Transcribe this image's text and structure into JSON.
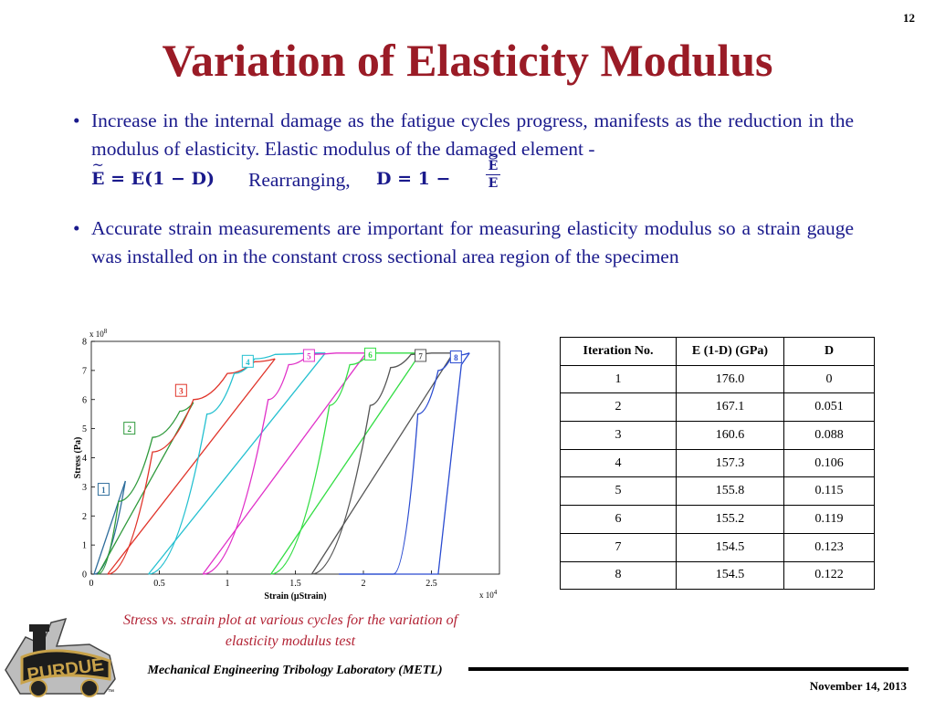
{
  "page_number": "12",
  "title": "Variation of Elasticity Modulus",
  "bullets": [
    {
      "marker": "•",
      "text": "Increase in the internal damage as the fatigue cycles progress, manifests as the reduction in the modulus of elasticity. Elastic modulus of the damaged element -",
      "formula_1_lhs": "E",
      "formula_1_rhs": " = E(1 − D)",
      "rearranging_label": "Rearranging,",
      "formula_2": "D = 1 −",
      "fraction_numerator": "E",
      "fraction_denominator": "E"
    },
    {
      "marker": "•",
      "text": "Accurate strain measurements are important for measuring elasticity modulus so a strain gauge was installed on in the constant cross sectional area region of the specimen"
    }
  ],
  "chart_data": {
    "type": "line",
    "xlabel": "Strain (μStrain)",
    "ylabel": "Stress (Pa)",
    "x_multiplier": "x 10^4",
    "y_multiplier": "x 10^8",
    "xlim": [
      0,
      3.0
    ],
    "ylim": [
      0,
      8
    ],
    "x_ticks": [
      "0",
      "0.5",
      "1",
      "1.5",
      "2",
      "2.5"
    ],
    "y_ticks": [
      "0",
      "1",
      "2",
      "3",
      "4",
      "5",
      "6",
      "7",
      "8"
    ],
    "grid": false,
    "series": [
      {
        "name": "1",
        "color": "#2f6e9c",
        "load": [
          [
            0.02,
            0
          ],
          [
            0.25,
            3.2
          ]
        ],
        "unload": [
          [
            0.25,
            3.2
          ],
          [
            0.02,
            0
          ]
        ],
        "label_pos": [
          0.09,
          2.9
        ]
      },
      {
        "name": "2",
        "color": "#2f9a3c",
        "load": [
          [
            0.05,
            0
          ],
          [
            0.2,
            2.5
          ],
          [
            0.45,
            4.7
          ],
          [
            0.65,
            5.6
          ],
          [
            0.75,
            5.9
          ]
        ],
        "unload": [
          [
            0.75,
            5.9
          ],
          [
            0.05,
            0
          ]
        ],
        "label_pos": [
          0.28,
          5.0
        ]
      },
      {
        "name": "3",
        "color": "#e0342a",
        "load": [
          [
            0.12,
            0
          ],
          [
            0.45,
            4.2
          ],
          [
            0.75,
            6.0
          ],
          [
            1.0,
            6.9
          ],
          [
            1.2,
            7.3
          ],
          [
            1.35,
            7.4
          ]
        ],
        "unload": [
          [
            1.35,
            7.4
          ],
          [
            0.12,
            0
          ]
        ],
        "label_pos": [
          0.66,
          6.3
        ]
      },
      {
        "name": "4",
        "color": "#24c0d0",
        "load": [
          [
            0.42,
            0
          ],
          [
            0.85,
            5.5
          ],
          [
            1.05,
            6.9
          ],
          [
            1.2,
            7.4
          ],
          [
            1.35,
            7.55
          ],
          [
            1.6,
            7.6
          ],
          [
            1.72,
            7.6
          ]
        ],
        "unload": [
          [
            1.72,
            7.6
          ],
          [
            0.42,
            0
          ]
        ],
        "label_pos": [
          1.15,
          7.3
        ]
      },
      {
        "name": "5",
        "color": "#e030c8",
        "load": [
          [
            0.82,
            0
          ],
          [
            1.3,
            6.0
          ],
          [
            1.45,
            7.2
          ],
          [
            1.6,
            7.55
          ],
          [
            1.8,
            7.6
          ],
          [
            2.02,
            7.6
          ]
        ],
        "unload": [
          [
            2.02,
            7.6
          ],
          [
            0.82,
            0
          ]
        ],
        "label_pos": [
          1.6,
          7.5
        ]
      },
      {
        "name": "6",
        "color": "#33dd44",
        "load": [
          [
            1.32,
            0
          ],
          [
            1.75,
            5.8
          ],
          [
            1.9,
            7.2
          ],
          [
            2.05,
            7.6
          ],
          [
            2.25,
            7.6
          ],
          [
            2.42,
            7.6
          ]
        ],
        "unload": [
          [
            2.42,
            7.6
          ],
          [
            1.32,
            0
          ]
        ],
        "label_pos": [
          2.05,
          7.55
        ]
      },
      {
        "name": "7",
        "color": "#555555",
        "load": [
          [
            1.62,
            0
          ],
          [
            2.05,
            5.8
          ],
          [
            2.2,
            7.1
          ],
          [
            2.35,
            7.55
          ],
          [
            2.5,
            7.6
          ],
          [
            2.66,
            7.6
          ]
        ],
        "unload": [
          [
            2.66,
            7.6
          ],
          [
            1.62,
            0
          ]
        ],
        "label_pos": [
          2.42,
          7.5
        ]
      },
      {
        "name": "8",
        "color": "#2a4bd0",
        "load": [
          [
            1.82,
            0
          ],
          [
            2.22,
            0
          ],
          [
            2.4,
            5.5
          ],
          [
            2.55,
            7.0
          ],
          [
            2.65,
            7.5
          ],
          [
            2.78,
            7.6
          ]
        ],
        "unload": [
          [
            2.78,
            7.6
          ],
          [
            2.72,
            7.2
          ],
          [
            2.55,
            0
          ],
          [
            1.82,
            0
          ]
        ],
        "label_pos": [
          2.68,
          7.45
        ]
      }
    ]
  },
  "table": {
    "headers": [
      "Iteration No.",
      "E (1-D) (GPa)",
      "D"
    ],
    "rows": [
      [
        "1",
        "176.0",
        "0"
      ],
      [
        "2",
        "167.1",
        "0.051"
      ],
      [
        "3",
        "160.6",
        "0.088"
      ],
      [
        "4",
        "157.3",
        "0.106"
      ],
      [
        "5",
        "155.8",
        "0.115"
      ],
      [
        "6",
        "155.2",
        "0.119"
      ],
      [
        "7",
        "154.5",
        "0.123"
      ],
      [
        "8",
        "154.5",
        "0.122"
      ]
    ]
  },
  "caption": "Stress vs. strain plot at various cycles for the variation of elasticity modulus test",
  "footer": {
    "lab_name": "Mechanical Engineering Tribology Laboratory (METL)",
    "date": "November 14, 2013",
    "logo_text": "PURDUE",
    "trademark": "™"
  },
  "colors": {
    "title": "#9a1b26",
    "body_text": "#1a1a8c",
    "caption": "#b22234",
    "logo_gold": "#c8a24a"
  }
}
